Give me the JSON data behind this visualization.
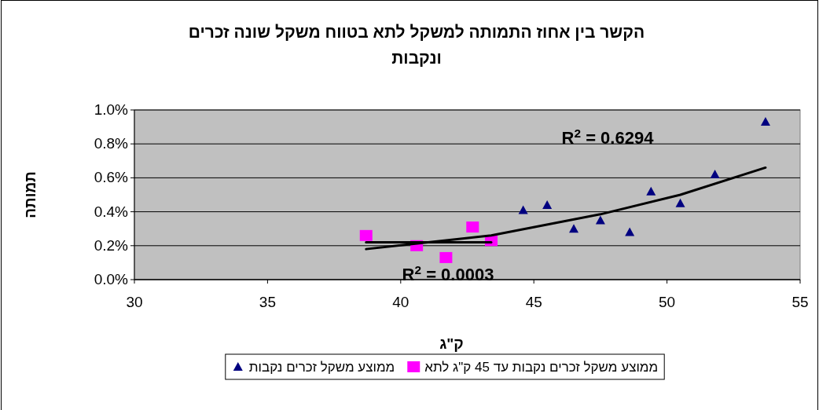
{
  "chart_data": {
    "type": "scatter",
    "title": "הקשר בין אחוז התמותה למשקל לתא בטווח משקל שונה זכרים ונקבות",
    "xlabel": "ק\"ג",
    "ylabel": "תמותה",
    "xlim": [
      30,
      55
    ],
    "xticks": [
      30,
      35,
      40,
      45,
      50,
      55
    ],
    "ylim": [
      0,
      1
    ],
    "yticks": [
      {
        "value": 0,
        "label": "0.0%"
      },
      {
        "value": 0.2,
        "label": "0.2%"
      },
      {
        "value": 0.4,
        "label": "0.4%"
      },
      {
        "value": 0.6,
        "label": "0.6%"
      },
      {
        "value": 0.8,
        "label": "0.8%"
      },
      {
        "value": 1,
        "label": "1.0%"
      }
    ],
    "grid": "y",
    "legend": "bottom",
    "series": [
      {
        "name": "ממוצע משקל זכרים נקבות",
        "color": "#000080",
        "type": "scatter",
        "marker": "triangle",
        "x": [
          44.6,
          45.5,
          46.5,
          47.5,
          48.6,
          49.4,
          50.5,
          51.8,
          53.7
        ],
        "values": [
          0.41,
          0.44,
          0.3,
          0.35,
          0.28,
          0.52,
          0.45,
          0.62,
          0.93
        ]
      },
      {
        "name": "ממוצע משקל זכרים נקבות עד 45 ק\"ג לתא",
        "color": "#ff00ff",
        "type": "scatter",
        "marker": "square",
        "x": [
          38.7,
          40.6,
          41.7,
          42.7,
          43.4
        ],
        "values": [
          0.26,
          0.2,
          0.13,
          0.31,
          0.23
        ]
      },
      {
        "color": "#000000",
        "type": "line",
        "marker": "none",
        "x": [
          38.7,
          43.4,
          47.5,
          50.5,
          53.7
        ],
        "values": [
          0.18,
          0.26,
          0.385,
          0.5,
          0.66
        ]
      },
      {
        "color": "#000000",
        "type": "line",
        "marker": "none",
        "x": [
          38.7,
          43.4
        ],
        "values": [
          0.22,
          0.22
        ]
      }
    ],
    "annotations": [
      "R$^{2}$ = 0.6294",
      "R$^{2}$ = 0.0003"
    ]
  }
}
